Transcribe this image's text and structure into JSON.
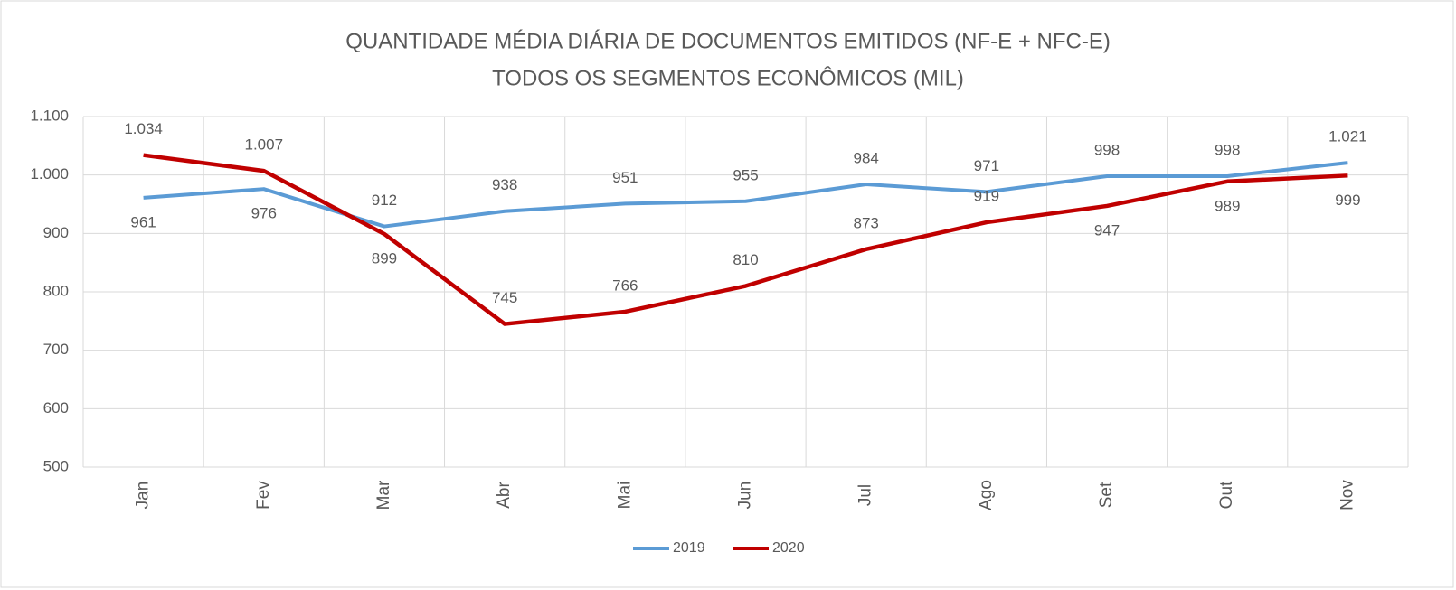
{
  "chart_data": {
    "type": "line",
    "title": "QUANTIDADE MÉDIA DIÁRIA DE DOCUMENTOS EMITIDOS (NF-E + NFC-E)",
    "subtitle": "TODOS OS SEGMENTOS ECONÔMICOS (MIL)",
    "categories": [
      "Jan",
      "Fev",
      "Mar",
      "Abr",
      "Mai",
      "Jun",
      "Jul",
      "Ago",
      "Set",
      "Out",
      "Nov"
    ],
    "series": [
      {
        "name": "2019",
        "color": "#5b9bd5",
        "values": [
          961,
          976,
          912,
          938,
          951,
          955,
          984,
          971,
          998,
          998,
          1021
        ],
        "value_labels": [
          "961",
          "976",
          "912",
          "938",
          "951",
          "955",
          "984",
          "971",
          "998",
          "998",
          "1.021"
        ]
      },
      {
        "name": "2020",
        "color": "#c00000",
        "values": [
          1034,
          1007,
          899,
          745,
          766,
          810,
          873,
          919,
          947,
          989,
          999
        ],
        "value_labels": [
          "1.034",
          "1.007",
          "899",
          "745",
          "766",
          "810",
          "873",
          "919",
          "947",
          "989",
          "999"
        ]
      }
    ],
    "ylim": [
      500,
      1100
    ],
    "yticks": [
      500,
      600,
      700,
      800,
      900,
      {
        "value": 1000,
        "label": "1.000"
      },
      {
        "value": 1100,
        "label": "1.100"
      }
    ],
    "grid": true,
    "legend": "bottom"
  }
}
